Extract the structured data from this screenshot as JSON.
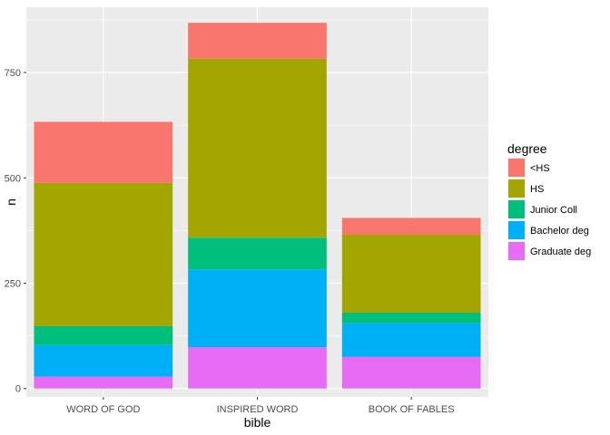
{
  "chart_data": {
    "type": "bar",
    "stacked": true,
    "title": "",
    "xlabel": "bible",
    "ylabel": "n",
    "categories": [
      "WORD OF GOD",
      "INSPIRED WORD",
      "BOOK OF FABLES"
    ],
    "ylim": [
      -20,
      905
    ],
    "yticks": [
      0,
      250,
      500,
      750
    ],
    "grid": true,
    "legend": {
      "title": "degree",
      "position": "right"
    },
    "series": [
      {
        "name": "<HS",
        "color": "#F8766D",
        "values": [
          145,
          85,
          40
        ]
      },
      {
        "name": "HS",
        "color": "#A3A500",
        "values": [
          340,
          425,
          185
        ]
      },
      {
        "name": "Junior Coll",
        "color": "#00BF7D",
        "values": [
          45,
          75,
          25
        ]
      },
      {
        "name": "Bachelor deg",
        "color": "#00B0F6",
        "values": [
          75,
          185,
          80
        ]
      },
      {
        "name": "Graduate deg",
        "color": "#E76BF3",
        "values": [
          28,
          98,
          75
        ]
      }
    ]
  }
}
